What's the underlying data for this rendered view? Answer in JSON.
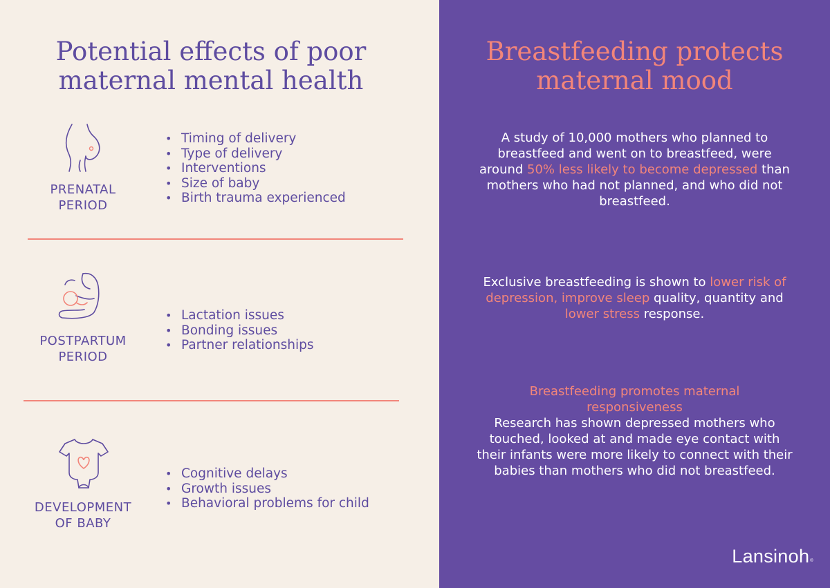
{
  "left": {
    "title_line1": "Potential effects of poor",
    "title_line2": "maternal mental health",
    "sections": [
      {
        "icon": "pregnant-belly-icon",
        "label_line1": "PRENATAL",
        "label_line2": "PERIOD",
        "bullets": [
          "Timing of delivery",
          "Type of delivery",
          "Interventions",
          "Size of baby",
          "Birth trauma experienced"
        ]
      },
      {
        "icon": "mother-holding-baby-icon",
        "label_line1": "POSTPARTUM",
        "label_line2": "PERIOD",
        "bullets": [
          "Lactation issues",
          "Bonding issues",
          "Partner relationships"
        ]
      },
      {
        "icon": "baby-onesie-heart-icon",
        "label_line1": "DEVELOPMENT",
        "label_line2": "OF BABY",
        "bullets": [
          "Cognitive delays",
          "Growth issues",
          "Behavioral problems for child"
        ]
      }
    ]
  },
  "right": {
    "title_line1": "Breastfeeding protects",
    "title_line2": "maternal mood",
    "para1": {
      "pre": "A study of 10,000 mothers who planned to breastfeed and went on to breastfeed, were around ",
      "hl": "50% less likely to become depressed",
      "post": " than mothers who had not planned, and who did not breastfeed."
    },
    "para2": {
      "pre": "Exclusive breastfeeding is shown to ",
      "hl1": "lower risk of depression, improve sleep",
      "mid": " quality, quantity and ",
      "hl2": "lower stress",
      "post": " response."
    },
    "para3": {
      "head": "Breastfeeding promotes maternal responsiveness",
      "body": "Research has shown depressed mothers who touched, looked at and made eye contact with their infants were more likely to connect with their babies than mothers who did not breastfeed."
    },
    "logo": "Lansinoh",
    "logo_mark": "®"
  },
  "colors": {
    "left_bg": "#f6efe7",
    "right_bg": "#654ca2",
    "purple_text": "#5e4ca0",
    "accent_coral": "#f2857a",
    "white": "#ffffff"
  }
}
